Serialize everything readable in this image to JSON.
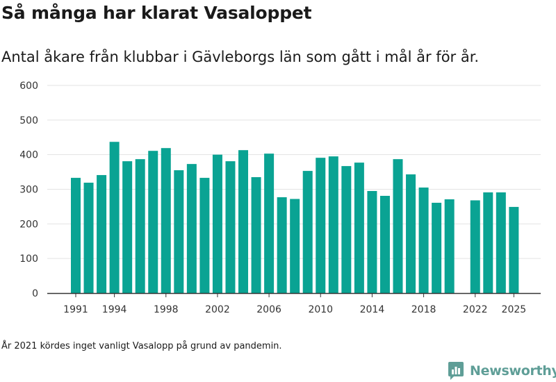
{
  "title": "Så många har klarat Vasaloppet",
  "subtitle": "Antal åkare från klubbar i Gävleborgs län som gått i mål år för år.",
  "footnote": "År 2021 kördes inget vanligt Vasalopp på grund av pandemin.",
  "brand": "Newsworthy",
  "colors": {
    "bar": "#0aa393",
    "grid": "#e3e3e3",
    "axis": "#333333",
    "brand": "#5f9e97"
  },
  "chart_data": {
    "type": "bar",
    "x": [
      1991,
      1992,
      1993,
      1994,
      1995,
      1996,
      1997,
      1998,
      1999,
      2000,
      2001,
      2002,
      2003,
      2004,
      2005,
      2006,
      2007,
      2008,
      2009,
      2010,
      2011,
      2012,
      2013,
      2014,
      2015,
      2016,
      2017,
      2018,
      2019,
      2020,
      2021,
      2022,
      2023,
      2024,
      2025
    ],
    "values": [
      333,
      319,
      341,
      437,
      381,
      387,
      411,
      419,
      355,
      373,
      333,
      400,
      381,
      413,
      335,
      403,
      277,
      272,
      353,
      391,
      395,
      367,
      377,
      295,
      281,
      387,
      343,
      305,
      261,
      271,
      null,
      268,
      291,
      291,
      249
    ],
    "x_tick_labels": [
      "1991",
      "1994",
      "1998",
      "2002",
      "2006",
      "2010",
      "2014",
      "2018",
      "2022",
      "2025"
    ],
    "y_tick_labels": [
      "0",
      "100",
      "200",
      "300",
      "400",
      "500",
      "600"
    ],
    "ylim": [
      0,
      600
    ],
    "grid": true
  }
}
